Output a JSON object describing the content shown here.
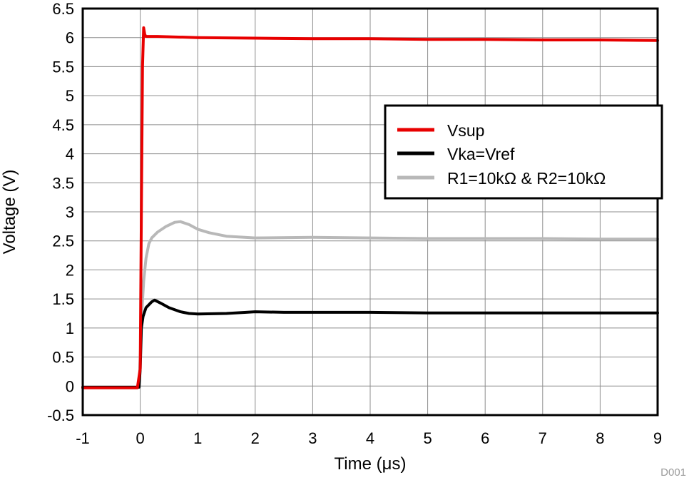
{
  "chart_data": {
    "type": "line",
    "title": "",
    "xlabel": "Time (μs)",
    "ylabel": "Voltage (V)",
    "xlim": [
      -1,
      9
    ],
    "ylim": [
      -0.5,
      6.5
    ],
    "xticks": [
      -1,
      0,
      1,
      2,
      3,
      4,
      5,
      6,
      7,
      8,
      9
    ],
    "yticks": [
      -0.5,
      0,
      0.5,
      1,
      1.5,
      2,
      2.5,
      3,
      3.5,
      4,
      4.5,
      5,
      5.5,
      6,
      6.5
    ],
    "xtick_labels": [
      "-1",
      "0",
      "1",
      "2",
      "3",
      "4",
      "5",
      "6",
      "7",
      "8",
      "9"
    ],
    "ytick_labels": [
      "-0.5",
      "0",
      "0.5",
      "1",
      "1.5",
      "2",
      "2.5",
      "3",
      "3.5",
      "4",
      "4.5",
      "5",
      "5.5",
      "6",
      "6.5"
    ],
    "grid": true,
    "legend_position": "center-right",
    "series": [
      {
        "name": "Vsup",
        "color": "#e80000",
        "x": [
          -1,
          -0.05,
          0,
          0.02,
          0.04,
          0.06,
          0.08,
          0.1,
          0.3,
          1,
          2,
          3,
          4,
          5,
          6,
          7,
          8,
          9
        ],
        "y": [
          -0.03,
          -0.03,
          0.3,
          3.0,
          5.5,
          6.17,
          6.05,
          6.02,
          6.02,
          6.0,
          5.99,
          5.98,
          5.98,
          5.97,
          5.97,
          5.96,
          5.96,
          5.95
        ]
      },
      {
        "name": "Vka=Vref",
        "color": "#000000",
        "x": [
          -1,
          -0.02,
          0,
          0.02,
          0.05,
          0.1,
          0.2,
          0.25,
          0.35,
          0.5,
          0.7,
          0.85,
          1,
          1.5,
          2,
          2.5,
          3,
          4,
          5,
          6,
          7,
          8,
          9
        ],
        "y": [
          -0.02,
          -0.02,
          0.3,
          1.0,
          1.2,
          1.35,
          1.45,
          1.48,
          1.43,
          1.35,
          1.28,
          1.25,
          1.24,
          1.25,
          1.28,
          1.27,
          1.27,
          1.27,
          1.26,
          1.26,
          1.26,
          1.26,
          1.26
        ]
      },
      {
        "name": "R1=10kΩ & R2=10kΩ",
        "color": "#b8b8b8",
        "x": [
          -1,
          -0.02,
          0,
          0.03,
          0.06,
          0.1,
          0.15,
          0.2,
          0.3,
          0.45,
          0.6,
          0.7,
          0.85,
          1,
          1.2,
          1.5,
          2,
          3,
          4,
          5,
          6,
          7,
          8,
          9
        ],
        "y": [
          -0.02,
          -0.02,
          0.5,
          1.3,
          1.8,
          2.2,
          2.45,
          2.55,
          2.65,
          2.75,
          2.82,
          2.83,
          2.78,
          2.7,
          2.64,
          2.58,
          2.55,
          2.56,
          2.55,
          2.54,
          2.54,
          2.54,
          2.53,
          2.53
        ]
      }
    ]
  },
  "figure_id": "D001"
}
